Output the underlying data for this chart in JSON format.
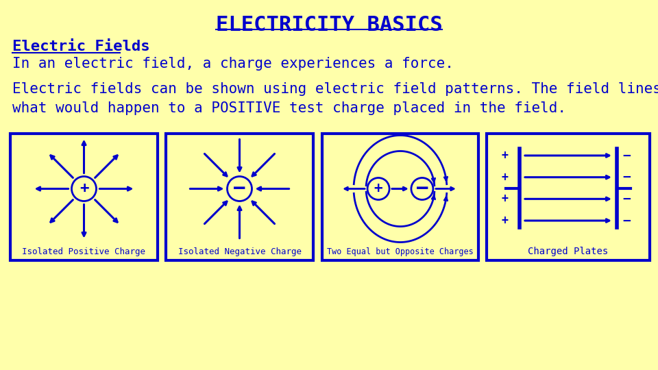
{
  "bg_color": "#FFFFAA",
  "blue": "#0000CC",
  "title": "ELECTRICITY BASICS",
  "line1": "Electric Fields",
  "line2": "In an electric field, a charge experiences a force.",
  "line3a": "Electric fields can be shown using electric field patterns. The field lines show",
  "line3b": "what would happen to a POSITIVE test charge placed in the field.",
  "label1": "Isolated Positive Charge",
  "label2": "Isolated Negative Charge",
  "label3": "Two Equal but Opposite Charges",
  "label4": "Charged Plates"
}
